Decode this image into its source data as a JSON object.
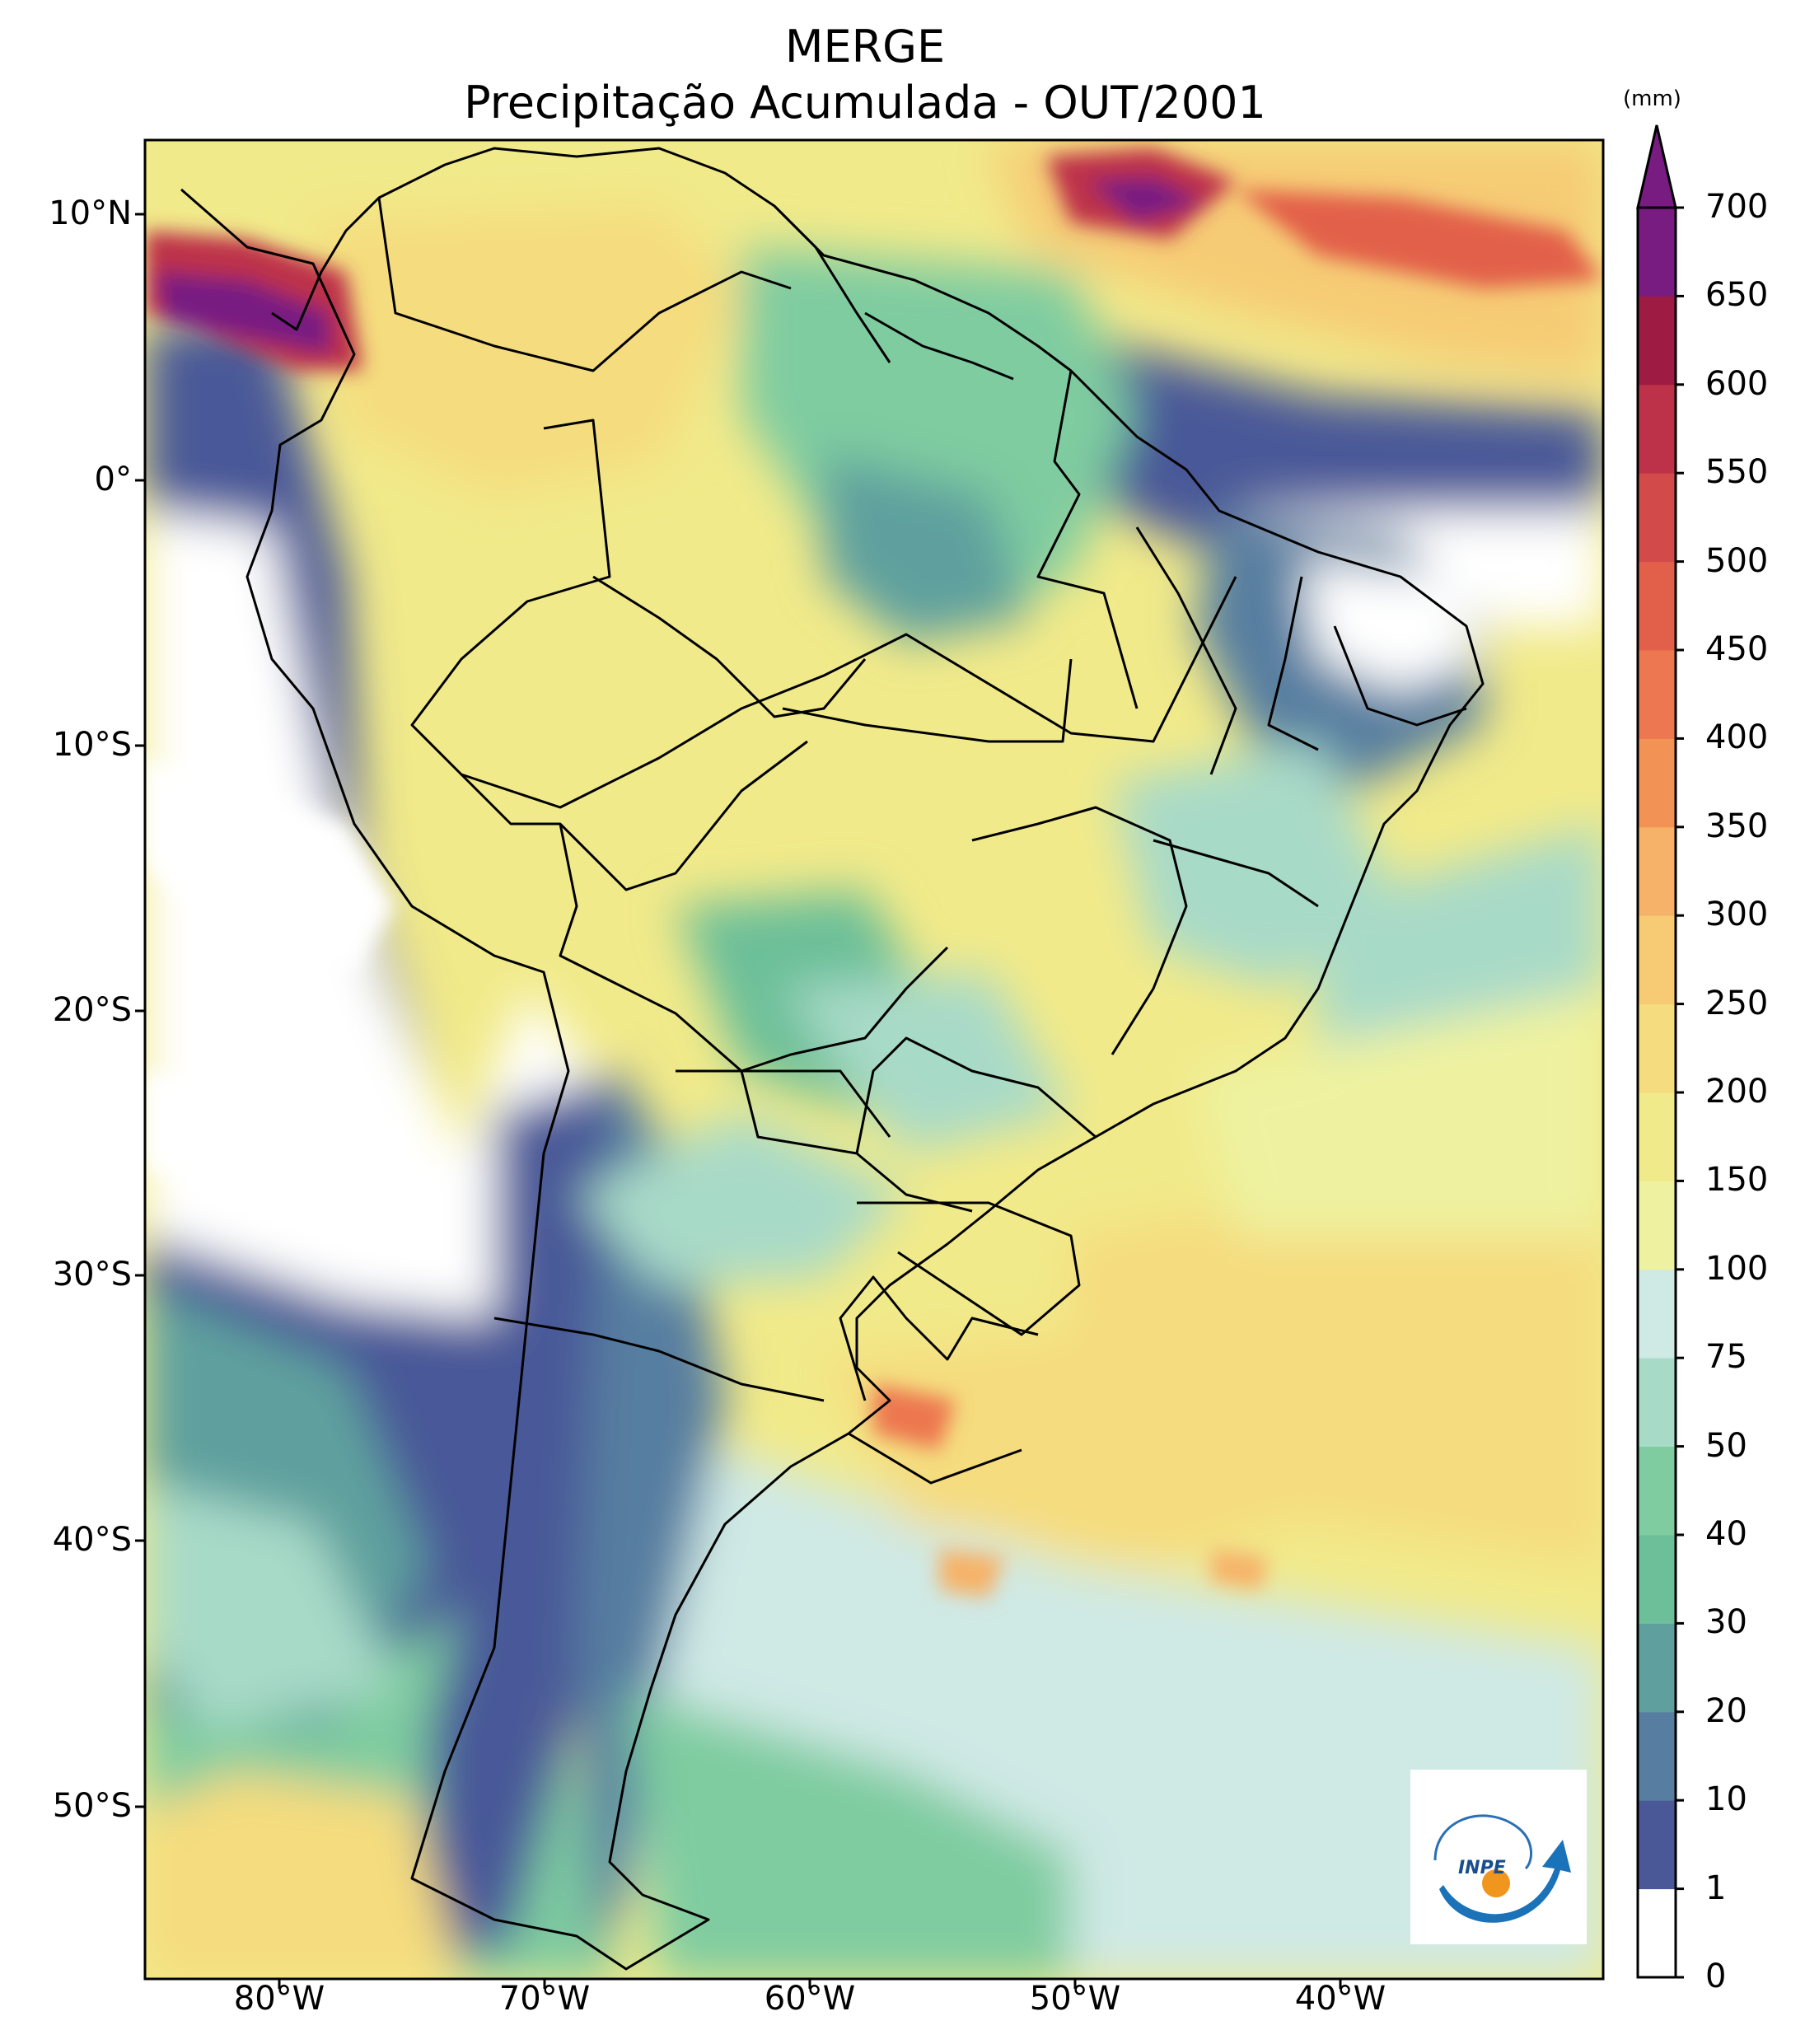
{
  "title": {
    "line1": "MERGE",
    "line2": "Precipitação Acumulada - OUT/2001"
  },
  "axes": {
    "lat_ticks": [
      "10°N",
      "0°",
      "10°S",
      "20°S",
      "30°S",
      "40°S",
      "50°S"
    ],
    "lon_ticks": [
      "80°W",
      "70°W",
      "60°W",
      "50°W",
      "40°W"
    ]
  },
  "colorbar": {
    "unit": "(mm)",
    "levels": [
      "0",
      "1",
      "10",
      "20",
      "30",
      "40",
      "50",
      "75",
      "100",
      "150",
      "200",
      "250",
      "300",
      "350",
      "400",
      "450",
      "500",
      "550",
      "600",
      "650",
      "700"
    ],
    "colors": [
      "#ffffff",
      "#4a5898",
      "#577ea0",
      "#5fa09e",
      "#6cbf99",
      "#7fcca0",
      "#a8dac8",
      "#cfe9e5",
      "#eef2a0",
      "#f1ea8a",
      "#f5dc7e",
      "#f6cb74",
      "#f6b268",
      "#f29355",
      "#ed7750",
      "#e2604a",
      "#d24a4a",
      "#bd3248",
      "#9e1c44",
      "#781c82"
    ],
    "extend": "max"
  },
  "logo": {
    "text": "INPE"
  }
}
